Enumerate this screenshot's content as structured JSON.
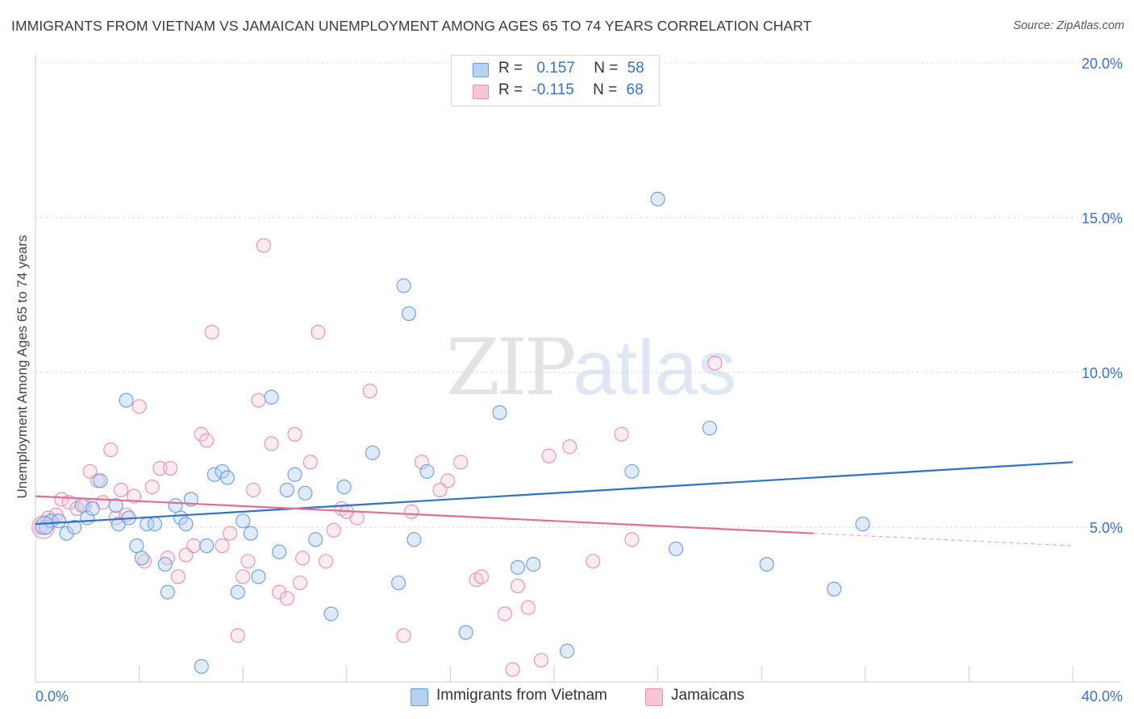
{
  "chart_data": {
    "type": "scatter",
    "title": "IMMIGRANTS FROM VIETNAM VS JAMAICAN UNEMPLOYMENT AMONG AGES 65 TO 74 YEARS CORRELATION CHART",
    "source": "Source: ZipAtlas.com",
    "ylabel": "Unemployment Among Ages 65 to 74 years",
    "xlim": [
      0,
      40
    ],
    "ylim": [
      0,
      20
    ],
    "x_tick_labels": [
      "0.0%",
      "40.0%"
    ],
    "y_tick_labels": [
      "5.0%",
      "10.0%",
      "15.0%",
      "20.0%"
    ],
    "y_ticks": [
      5,
      10,
      15,
      20
    ],
    "watermark": {
      "left": "ZIP",
      "right": "atlas"
    },
    "legend_stats": [
      {
        "r_label": "R =",
        "r_value": "0.157",
        "n_label": "N =",
        "n_value": "58"
      },
      {
        "r_label": "R =",
        "r_value": "-0.115",
        "n_label": "N =",
        "n_value": "68"
      }
    ],
    "colors": {
      "blue": "#6a9de0",
      "blue_fill": "#b7d1f3",
      "blue_line": "#2f72c9",
      "pink": "#e891ad",
      "pink_fill": "#f6c6d6",
      "pink_line": "#df6d95"
    },
    "series": [
      {
        "name": "Immigrants from Vietnam",
        "trend": {
          "x0": 0,
          "y0": 5.1,
          "x1": 40,
          "y1": 7.1
        },
        "points": [
          [
            0.4,
            5.0
          ],
          [
            0.6,
            5.2
          ],
          [
            0.9,
            5.2
          ],
          [
            1.2,
            4.8
          ],
          [
            1.5,
            5.0
          ],
          [
            1.8,
            5.7
          ],
          [
            2.0,
            5.3
          ],
          [
            2.2,
            5.6
          ],
          [
            2.5,
            6.5
          ],
          [
            3.1,
            5.7
          ],
          [
            3.2,
            5.1
          ],
          [
            3.5,
            9.1
          ],
          [
            3.6,
            5.3
          ],
          [
            3.9,
            4.4
          ],
          [
            4.1,
            4.0
          ],
          [
            4.3,
            5.1
          ],
          [
            4.6,
            5.1
          ],
          [
            5.0,
            3.8
          ],
          [
            5.1,
            2.9
          ],
          [
            5.4,
            5.7
          ],
          [
            5.6,
            5.3
          ],
          [
            5.8,
            5.1
          ],
          [
            6.0,
            5.9
          ],
          [
            6.4,
            0.5
          ],
          [
            6.6,
            4.4
          ],
          [
            6.9,
            6.7
          ],
          [
            7.2,
            6.8
          ],
          [
            7.4,
            6.6
          ],
          [
            7.8,
            2.9
          ],
          [
            8.0,
            5.2
          ],
          [
            8.3,
            4.8
          ],
          [
            8.6,
            3.4
          ],
          [
            9.1,
            9.2
          ],
          [
            9.4,
            4.2
          ],
          [
            9.7,
            6.2
          ],
          [
            10.0,
            6.7
          ],
          [
            10.4,
            6.1
          ],
          [
            10.8,
            4.6
          ],
          [
            11.4,
            2.2
          ],
          [
            11.9,
            6.3
          ],
          [
            13.0,
            7.4
          ],
          [
            14.0,
            3.2
          ],
          [
            14.2,
            12.8
          ],
          [
            14.4,
            11.9
          ],
          [
            14.6,
            4.6
          ],
          [
            15.1,
            6.8
          ],
          [
            16.6,
            1.6
          ],
          [
            17.9,
            8.7
          ],
          [
            18.6,
            3.7
          ],
          [
            19.2,
            3.8
          ],
          [
            20.5,
            1.0
          ],
          [
            23.0,
            6.8
          ],
          [
            24.0,
            15.6
          ],
          [
            24.7,
            4.3
          ],
          [
            26.0,
            8.2
          ],
          [
            28.2,
            3.8
          ],
          [
            30.8,
            3.0
          ],
          [
            31.9,
            5.1
          ]
        ]
      },
      {
        "name": "Jamaicans",
        "trend": {
          "x0": 0,
          "y0": 6.0,
          "x1": 30,
          "y1": 4.8,
          "dash_to_x": 40,
          "dash_to_y": 4.4
        },
        "points": [
          [
            0.2,
            5.0
          ],
          [
            0.5,
            5.3
          ],
          [
            0.8,
            5.4
          ],
          [
            1.0,
            5.9
          ],
          [
            1.3,
            5.8
          ],
          [
            1.6,
            5.6
          ],
          [
            1.9,
            5.7
          ],
          [
            2.1,
            6.8
          ],
          [
            2.4,
            6.5
          ],
          [
            2.6,
            5.8
          ],
          [
            2.9,
            7.5
          ],
          [
            3.1,
            5.3
          ],
          [
            3.3,
            6.2
          ],
          [
            3.5,
            5.4
          ],
          [
            3.8,
            6.0
          ],
          [
            4.0,
            8.9
          ],
          [
            4.2,
            3.9
          ],
          [
            4.5,
            6.3
          ],
          [
            4.8,
            6.9
          ],
          [
            5.1,
            4.0
          ],
          [
            5.2,
            6.9
          ],
          [
            5.5,
            3.4
          ],
          [
            5.8,
            4.1
          ],
          [
            6.1,
            4.4
          ],
          [
            6.4,
            8.0
          ],
          [
            6.6,
            7.8
          ],
          [
            6.8,
            11.3
          ],
          [
            7.2,
            4.4
          ],
          [
            7.5,
            4.8
          ],
          [
            7.8,
            1.5
          ],
          [
            8.0,
            3.4
          ],
          [
            8.2,
            3.9
          ],
          [
            8.4,
            6.2
          ],
          [
            8.6,
            9.1
          ],
          [
            8.8,
            14.1
          ],
          [
            9.1,
            7.7
          ],
          [
            9.4,
            2.9
          ],
          [
            9.7,
            2.7
          ],
          [
            10.0,
            8.0
          ],
          [
            10.3,
            4.0
          ],
          [
            10.6,
            7.1
          ],
          [
            10.9,
            11.3
          ],
          [
            11.2,
            3.9
          ],
          [
            11.5,
            4.9
          ],
          [
            11.8,
            5.6
          ],
          [
            12.4,
            5.3
          ],
          [
            12.9,
            9.4
          ],
          [
            14.2,
            1.5
          ],
          [
            14.5,
            5.5
          ],
          [
            14.9,
            7.1
          ],
          [
            15.9,
            6.5
          ],
          [
            16.4,
            7.1
          ],
          [
            17.0,
            3.3
          ],
          [
            17.2,
            3.4
          ],
          [
            18.1,
            2.2
          ],
          [
            18.4,
            0.4
          ],
          [
            18.6,
            3.1
          ],
          [
            19.0,
            2.4
          ],
          [
            19.5,
            0.7
          ],
          [
            19.8,
            7.3
          ],
          [
            20.6,
            7.6
          ],
          [
            21.5,
            3.9
          ],
          [
            22.6,
            8.0
          ],
          [
            23.0,
            4.6
          ],
          [
            26.2,
            10.3
          ],
          [
            12.0,
            5.5
          ],
          [
            10.2,
            3.2
          ],
          [
            15.6,
            6.2
          ]
        ]
      }
    ],
    "legend": [
      "Immigrants from Vietnam",
      "Jamaicans"
    ]
  }
}
